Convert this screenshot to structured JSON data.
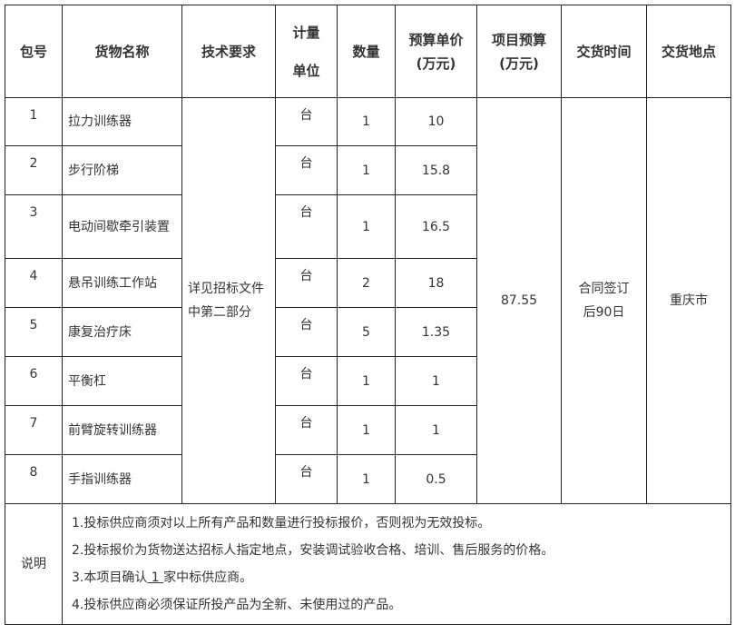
{
  "headers": {
    "pkg": "包号",
    "name": "货物名称",
    "tech": "技术要求",
    "unit_1": "计量",
    "unit_2": "单位",
    "qty": "数量",
    "price_1": "预算单价",
    "price_2": "(万元)",
    "budget_1": "项目预算",
    "budget_2": "(万元)",
    "time": "交货时间",
    "place": "交货地点"
  },
  "rows": [
    {
      "pkg": "1",
      "name": "拉力训练器",
      "unit": "台",
      "qty": "1",
      "price": "10"
    },
    {
      "pkg": "2",
      "name": "步行阶梯",
      "unit": "台",
      "qty": "1",
      "price": "15.8"
    },
    {
      "pkg": "3",
      "name": "电动间歇牵引装置",
      "unit": "台",
      "qty": "1",
      "price": "16.5"
    },
    {
      "pkg": "4",
      "name": "悬吊训练工作站",
      "unit": "台",
      "qty": "2",
      "price": "18"
    },
    {
      "pkg": "5",
      "name": "康复治疗床",
      "unit": "台",
      "qty": "5",
      "price": "1.35"
    },
    {
      "pkg": "6",
      "name": "平衡杠",
      "unit": "台",
      "qty": "1",
      "price": "1"
    },
    {
      "pkg": "7",
      "name": "前臂旋转训练器",
      "unit": "台",
      "qty": "1",
      "price": "1"
    },
    {
      "pkg": "8",
      "name": "手指训练器",
      "unit": "台",
      "qty": "1",
      "price": "0.5"
    }
  ],
  "tech": "详见招标文件中第二部分",
  "budget": "87.55",
  "time": "合同签订后90日",
  "place": "重庆市",
  "notes": {
    "label": "说明",
    "n1": "1.投标供应商须对以上所有产品和数量进行投标报价，否则视为无效投标。",
    "n2": "2.投标报价为货物送达招标人指定地点，安装调试验收合格、培训、售后服务的价格。",
    "n3_a": "3.本项目确认",
    "n3_b": " 1 ",
    "n3_c": "家中标供应商。",
    "n4": "4.投标供应商必须保证所投产品为全新、未使用过的产品。"
  }
}
